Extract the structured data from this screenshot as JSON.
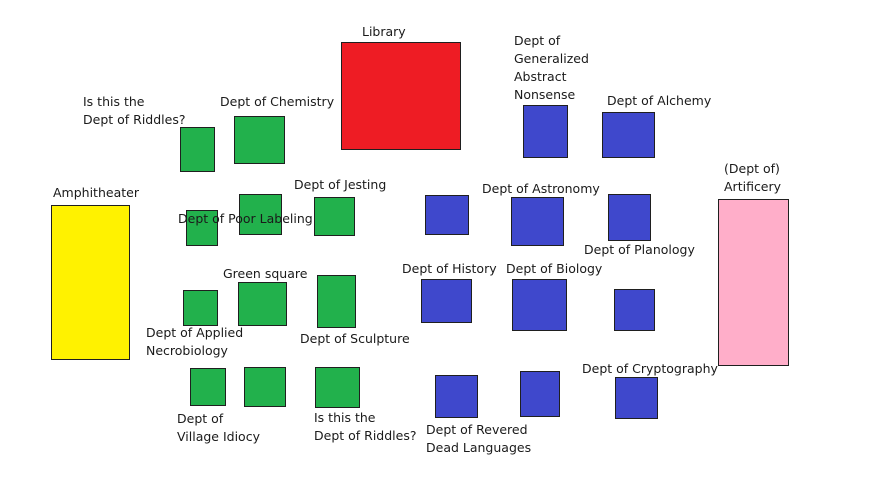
{
  "colors": {
    "library": "#ee1c24",
    "amphitheater": "#fff200",
    "artificery": "#ffaec9",
    "green": "#22b14c",
    "blue": "#3f48cc"
  },
  "labels": {
    "library": "Library",
    "generalized_abstract_nonsense": [
      "Dept of",
      "Generalized",
      "Abstract",
      "Nonsense"
    ],
    "alchemy": "Dept of Alchemy",
    "riddles_top": [
      "Is this the",
      "Dept of Riddles?"
    ],
    "chemistry": "Dept of Chemistry",
    "amphitheater": "Amphitheater",
    "jesting": "Dept of Jesting",
    "poor_labeling": "Dept of Poor Labeling",
    "astronomy": "Dept of Astronomy",
    "artificery": [
      "(Dept of)",
      "Artificery"
    ],
    "planology": "Dept of Planology",
    "green_square": "Green square",
    "history": "Dept of History",
    "biology": "Dept of Biology",
    "applied_necrobiology": [
      "Dept of Applied",
      "Necrobiology"
    ],
    "sculpture": "Dept of Sculpture",
    "cryptography": "Dept of Cryptography",
    "village_idiocy": [
      "Dept of",
      "Village Idiocy"
    ],
    "riddles_bottom": [
      "Is this the",
      "Dept of Riddles?"
    ],
    "revered_dead_languages": [
      "Dept of Revered",
      "Dead Languages"
    ]
  }
}
